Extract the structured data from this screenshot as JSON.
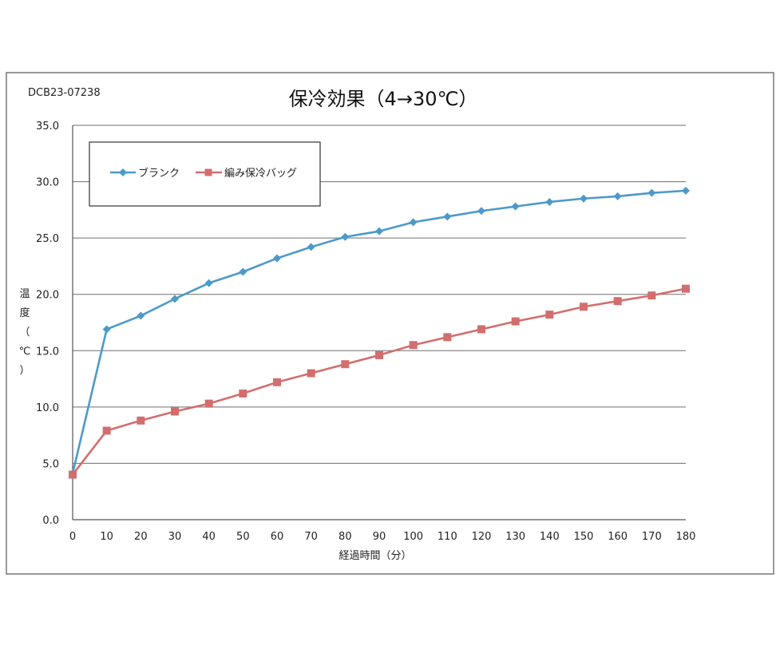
{
  "doc_code": "DCB23-07238",
  "colors": {
    "blank": "#4b9ac9",
    "bag": "#d26e6e"
  },
  "chart_data": {
    "type": "line",
    "title": "保冷効果（4→30℃）",
    "xlabel": "経過時間（分）",
    "ylabel": [
      "温",
      "度",
      "（",
      "℃",
      "）"
    ],
    "x": [
      0,
      10,
      20,
      30,
      40,
      50,
      60,
      70,
      80,
      90,
      100,
      110,
      120,
      130,
      140,
      150,
      160,
      170,
      180
    ],
    "xlim": [
      0,
      180
    ],
    "ylim": [
      0,
      35
    ],
    "x_ticks": [
      "0",
      "10",
      "20",
      "30",
      "40",
      "50",
      "60",
      "70",
      "80",
      "90",
      "100",
      "110",
      "120",
      "130",
      "140",
      "150",
      "160",
      "170",
      "180"
    ],
    "y_ticks": [
      0,
      5,
      10,
      15,
      20,
      25,
      30,
      35
    ],
    "y_tick_labels": [
      "0.0",
      "5.0",
      "10.0",
      "15.0",
      "20.0",
      "25.0",
      "30.0",
      "35.0"
    ],
    "grid": true,
    "legend_position": "top-left",
    "series": [
      {
        "name": "ブランク",
        "marker": "diamond",
        "values": [
          4.1,
          16.9,
          18.1,
          19.6,
          21.0,
          22.0,
          23.2,
          24.2,
          25.1,
          25.6,
          26.4,
          26.9,
          27.4,
          27.8,
          28.2,
          28.5,
          28.7,
          29.0,
          29.2
        ]
      },
      {
        "name": "編み保冷バッグ",
        "marker": "square",
        "values": [
          4.0,
          7.9,
          8.8,
          9.6,
          10.3,
          11.2,
          12.2,
          13.0,
          13.8,
          14.6,
          15.5,
          16.2,
          16.9,
          17.6,
          18.2,
          18.9,
          19.4,
          19.9,
          20.5
        ]
      }
    ]
  }
}
